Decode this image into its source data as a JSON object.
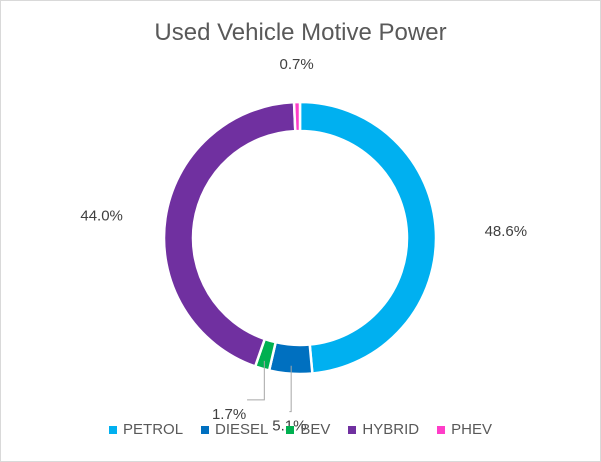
{
  "chart_data": {
    "type": "pie",
    "variant": "doughnut",
    "title": "Used Vehicle Motive Power",
    "categories": [
      "PETROL",
      "DIESEL",
      "BEV",
      "HYBRID",
      "PHEV"
    ],
    "values": [
      48.6,
      5.1,
      1.7,
      44.0,
      0.7
    ],
    "data_labels": [
      "48.6%",
      "5.1%",
      "1.7%",
      "44.0%",
      "0.7%"
    ],
    "colors": [
      "#00b0f0",
      "#0070c0",
      "#00b050",
      "#7030a0",
      "#ff3dc8"
    ],
    "legend_position": "bottom",
    "start_angle_deg": 0,
    "direction": "clockwise"
  }
}
